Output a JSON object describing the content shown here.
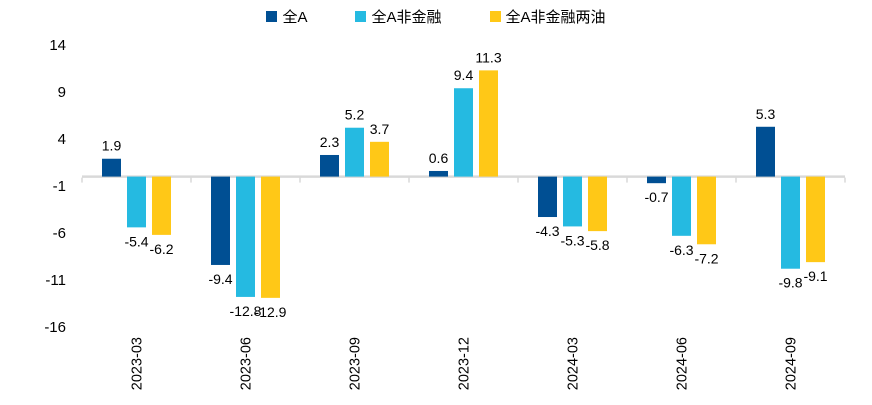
{
  "chart_data": {
    "type": "bar",
    "title": "",
    "categories": [
      "2023-03",
      "2023-06",
      "2023-09",
      "2023-12",
      "2024-03",
      "2024-06",
      "2024-09"
    ],
    "series": [
      {
        "name": "全A",
        "color": "#004F93",
        "values": [
          1.9,
          -9.4,
          2.3,
          0.6,
          -4.3,
          -0.7,
          5.3
        ]
      },
      {
        "name": "全A非金融",
        "color": "#25BAE1",
        "values": [
          -5.4,
          -12.8,
          5.2,
          9.4,
          -5.3,
          -6.3,
          -9.8
        ]
      },
      {
        "name": "全A非金融两油",
        "color": "#FFC817",
        "values": [
          -6.2,
          -12.9,
          3.7,
          11.3,
          -5.8,
          -7.2,
          -9.1
        ]
      }
    ],
    "yticks": [
      14,
      9,
      4,
      -1,
      -6,
      -11,
      -16
    ],
    "ylim": [
      -16,
      14
    ],
    "grid": false,
    "legend_position": "top",
    "data_labels": true,
    "axis_color": "#D9D9D9",
    "label_color": "#000000"
  }
}
